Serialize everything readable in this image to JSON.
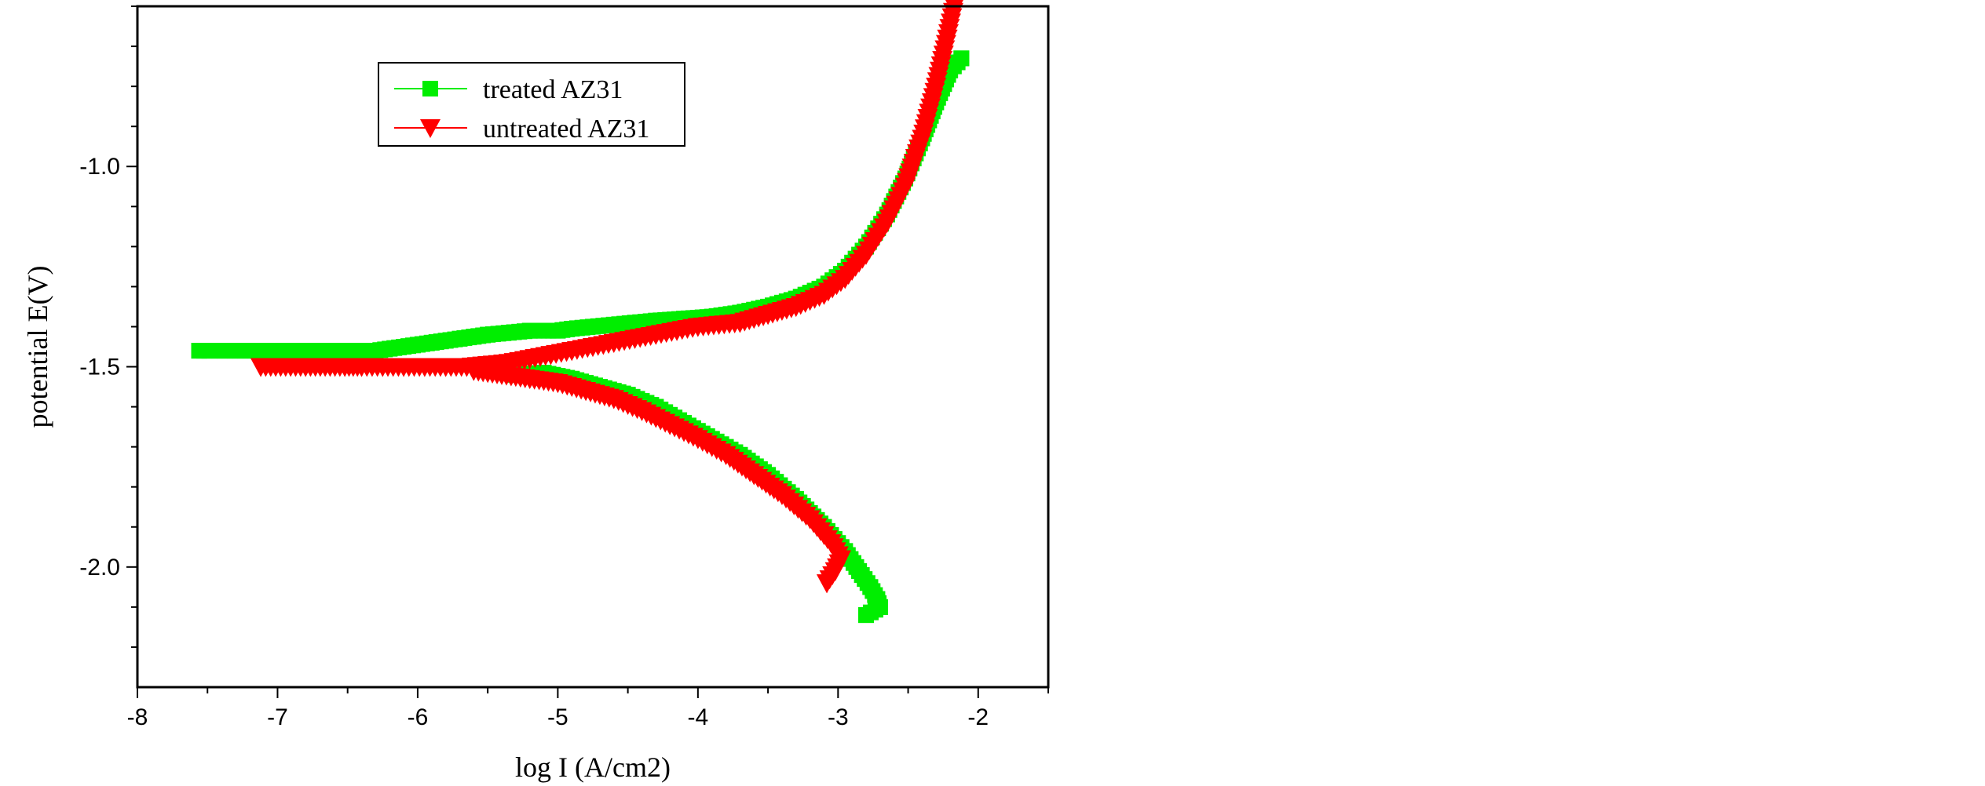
{
  "chart_data": {
    "type": "scatter",
    "xlabel": "log I (A/cm2)",
    "ylabel": "potential E(V)",
    "xlim": [
      -8,
      -1.5
    ],
    "ylim": [
      -2.3,
      -0.6
    ],
    "x_ticks": [
      -8,
      -7,
      -6,
      -5,
      -4,
      -3,
      -2
    ],
    "x_tick_labels": [
      "-8",
      "-7",
      "-6",
      "-5",
      "-4",
      "-3",
      "-2"
    ],
    "y_ticks": [
      -2.0,
      -1.5,
      -1.0
    ],
    "y_tick_labels": [
      "-2.0",
      "-1.5",
      "-1.0"
    ],
    "grid": false,
    "legend_position": "top-left",
    "series": [
      {
        "name": "treated AZ31",
        "color": "#00ee00",
        "marker": "square",
        "anodic": [
          [
            -7.56,
            -1.46
          ],
          [
            -7.12,
            -1.46
          ],
          [
            -6.85,
            -1.46
          ],
          [
            -6.78,
            -1.46
          ],
          [
            -6.55,
            -1.46
          ],
          [
            -6.42,
            -1.46
          ],
          [
            -6.3,
            -1.46
          ],
          [
            -6.2,
            -1.455
          ],
          [
            -6.1,
            -1.45
          ],
          [
            -6.0,
            -1.445
          ],
          [
            -5.9,
            -1.44
          ],
          [
            -5.8,
            -1.435
          ],
          [
            -5.7,
            -1.43
          ],
          [
            -5.6,
            -1.425
          ],
          [
            -5.5,
            -1.42
          ],
          [
            -5.35,
            -1.415
          ],
          [
            -5.2,
            -1.41
          ],
          [
            -5.0,
            -1.41
          ],
          [
            -4.9,
            -1.405
          ],
          [
            -4.75,
            -1.4
          ],
          [
            -4.6,
            -1.395
          ],
          [
            -4.45,
            -1.39
          ],
          [
            -4.3,
            -1.385
          ],
          [
            -4.1,
            -1.38
          ],
          [
            -3.9,
            -1.375
          ],
          [
            -3.7,
            -1.365
          ],
          [
            -3.5,
            -1.35
          ],
          [
            -3.3,
            -1.33
          ],
          [
            -3.1,
            -1.3
          ],
          [
            -2.95,
            -1.26
          ],
          [
            -2.8,
            -1.2
          ],
          [
            -2.65,
            -1.12
          ],
          [
            -2.52,
            -1.03
          ],
          [
            -2.4,
            -0.93
          ],
          [
            -2.3,
            -0.84
          ],
          [
            -2.2,
            -0.76
          ],
          [
            -2.12,
            -0.73
          ]
        ],
        "cathodic": [
          [
            -5.3,
            -1.52
          ],
          [
            -5.1,
            -1.515
          ],
          [
            -4.9,
            -1.53
          ],
          [
            -4.7,
            -1.55
          ],
          [
            -4.5,
            -1.57
          ],
          [
            -4.3,
            -1.6
          ],
          [
            -4.1,
            -1.64
          ],
          [
            -3.9,
            -1.68
          ],
          [
            -3.7,
            -1.72
          ],
          [
            -3.5,
            -1.77
          ],
          [
            -3.3,
            -1.83
          ],
          [
            -3.1,
            -1.9
          ],
          [
            -2.95,
            -1.96
          ],
          [
            -2.85,
            -2.01
          ],
          [
            -2.77,
            -2.05
          ],
          [
            -2.72,
            -2.08
          ],
          [
            -2.7,
            -2.1
          ],
          [
            -2.8,
            -2.12
          ]
        ]
      },
      {
        "name": "untreated AZ31",
        "color": "#ff0000",
        "marker": "triangle-down",
        "anodic": [
          [
            -7.12,
            -1.5
          ],
          [
            -6.8,
            -1.5
          ],
          [
            -6.52,
            -1.5
          ],
          [
            -6.4,
            -1.5
          ],
          [
            -6.25,
            -1.5
          ],
          [
            -6.1,
            -1.5
          ],
          [
            -5.95,
            -1.5
          ],
          [
            -5.8,
            -1.5
          ],
          [
            -5.65,
            -1.5
          ],
          [
            -5.5,
            -1.495
          ],
          [
            -5.35,
            -1.49
          ],
          [
            -5.2,
            -1.48
          ],
          [
            -5.05,
            -1.47
          ],
          [
            -4.9,
            -1.46
          ],
          [
            -4.75,
            -1.45
          ],
          [
            -4.6,
            -1.44
          ],
          [
            -4.45,
            -1.43
          ],
          [
            -4.3,
            -1.42
          ],
          [
            -4.15,
            -1.41
          ],
          [
            -4.0,
            -1.4
          ],
          [
            -3.85,
            -1.395
          ],
          [
            -3.7,
            -1.39
          ],
          [
            -3.5,
            -1.37
          ],
          [
            -3.3,
            -1.35
          ],
          [
            -3.1,
            -1.32
          ],
          [
            -2.95,
            -1.28
          ],
          [
            -2.8,
            -1.22
          ],
          [
            -2.65,
            -1.14
          ],
          [
            -2.52,
            -1.05
          ],
          [
            -2.4,
            -0.93
          ],
          [
            -2.3,
            -0.8
          ],
          [
            -2.22,
            -0.68
          ],
          [
            -2.17,
            -0.6
          ]
        ],
        "cathodic": [
          [
            -5.6,
            -1.51
          ],
          [
            -5.4,
            -1.52
          ],
          [
            -5.2,
            -1.53
          ],
          [
            -5.0,
            -1.54
          ],
          [
            -4.8,
            -1.56
          ],
          [
            -4.6,
            -1.58
          ],
          [
            -4.4,
            -1.61
          ],
          [
            -4.2,
            -1.645
          ],
          [
            -4.0,
            -1.68
          ],
          [
            -3.8,
            -1.72
          ],
          [
            -3.6,
            -1.77
          ],
          [
            -3.4,
            -1.82
          ],
          [
            -3.2,
            -1.88
          ],
          [
            -3.05,
            -1.94
          ],
          [
            -2.98,
            -1.98
          ],
          [
            -3.02,
            -2.01
          ],
          [
            -3.08,
            -2.04
          ]
        ]
      }
    ]
  }
}
